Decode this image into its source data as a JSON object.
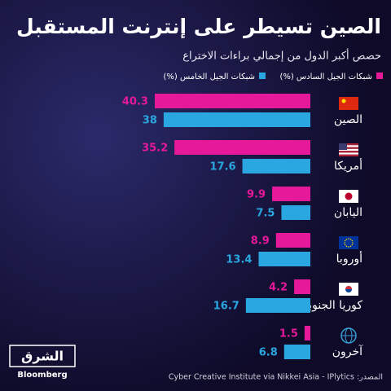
{
  "chart_data": {
    "type": "bar",
    "title": "الصين تسيطر على إنترنت المستقبل",
    "subtitle": "حصص أكبر الدول من إجمالي براءات الاختراع",
    "categories": [
      "الصين",
      "أمريكا",
      "اليابان",
      "أوروبا",
      "كوريا الجنوبية",
      "آخرون"
    ],
    "series": [
      {
        "name": "شبكات الجيل السادس (%)",
        "color": "#e6199b",
        "values": [
          40.3,
          35.2,
          9.9,
          8.9,
          4.2,
          1.5
        ]
      },
      {
        "name": "شبكات الجيل الخامس (%)",
        "color": "#2aa7e0",
        "values": [
          38,
          17.6,
          7.5,
          13.4,
          16.7,
          6.8
        ]
      }
    ],
    "source": "المصدر: Cyber Creative Institute via Nikkei Asia - IPlytics",
    "logo": {
      "name": "الشرق",
      "tag": "Bloomberg"
    }
  }
}
